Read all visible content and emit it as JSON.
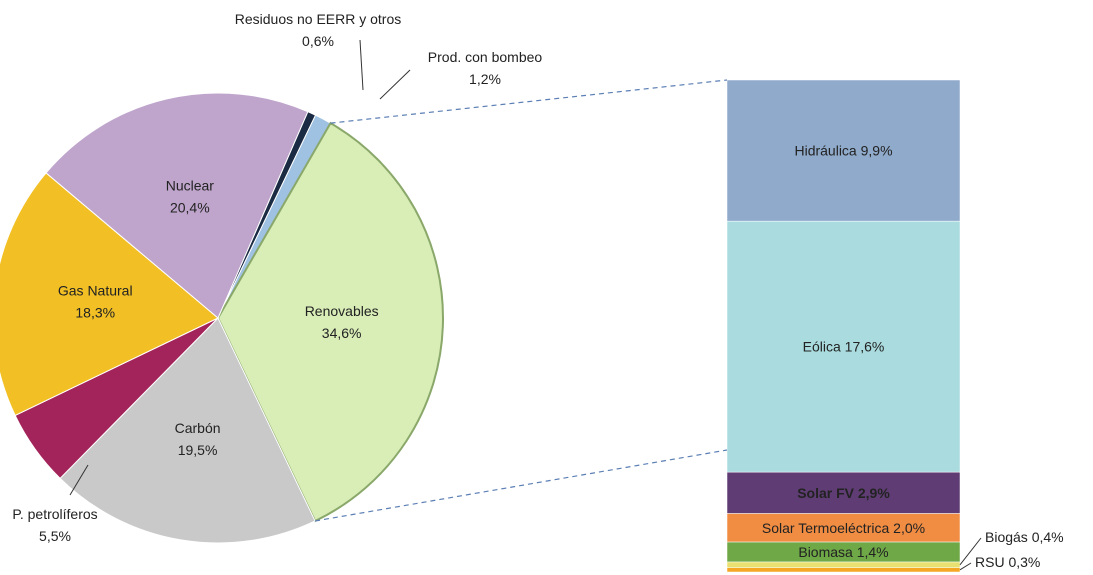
{
  "chart_data": [
    {
      "type": "pie",
      "categories": [
        "Residuos no EERR y otros",
        "Prod. con bombeo",
        "Renovables",
        "Carbón",
        "P. petrolíferos",
        "Gas Natural",
        "Nuclear"
      ],
      "values": [
        0.6,
        1.2,
        34.6,
        19.5,
        5.5,
        18.3,
        20.4
      ],
      "value_labels": [
        "0,6%",
        "1,2%",
        "34,6%",
        "19,5%",
        "5,5%",
        "18,3%",
        "20,4%"
      ],
      "colors": [
        "#1c2b44",
        "#9fc1e2",
        "#d9edb7",
        "#c9c9c9",
        "#a3245a",
        "#f2c025",
        "#bfa5cc"
      ]
    },
    {
      "type": "stacked-bar",
      "categories": [
        "Hidráulica",
        "Eólica",
        "Solar FV",
        "Solar Termoeléctrica",
        "Biomasa",
        "Biogás",
        "RSU"
      ],
      "values": [
        9.9,
        17.6,
        2.9,
        2.0,
        1.4,
        0.4,
        0.3
      ],
      "value_labels": [
        "9,9%",
        "17,6%",
        "2,9%",
        "2,0%",
        "1,4%",
        "0,4%",
        "0,3%"
      ],
      "colors": [
        "#8faacb",
        "#aadcdf",
        "#5f3d74",
        "#f08d43",
        "#6fa847",
        "#e8e070",
        "#f5a623"
      ]
    }
  ]
}
